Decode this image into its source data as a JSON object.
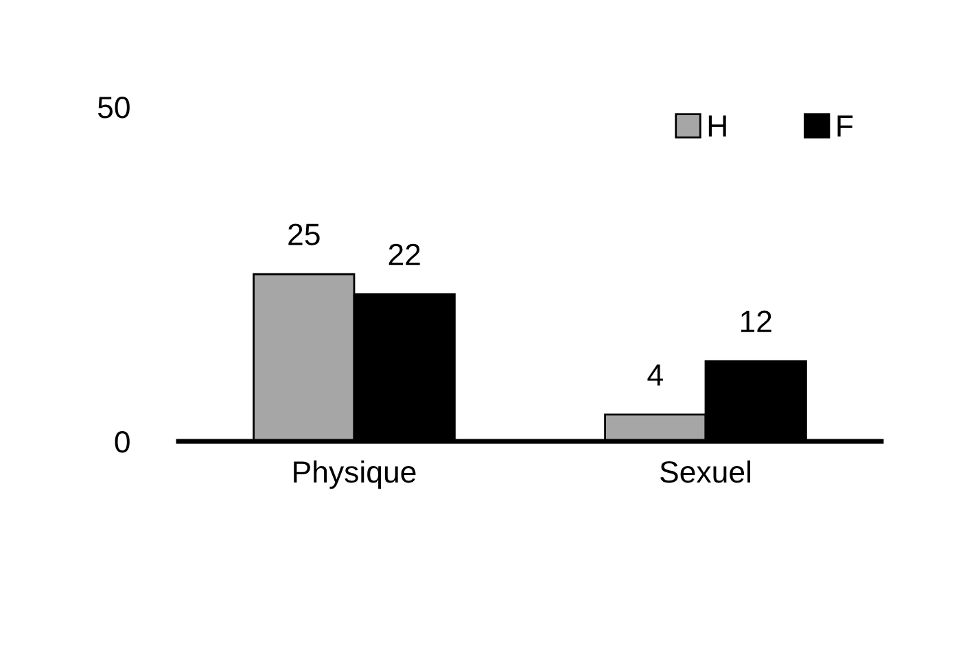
{
  "chart_data": {
    "type": "bar",
    "categories": [
      "Physique",
      "Sexuel"
    ],
    "series": [
      {
        "name": "H",
        "color": "#a6a6a6",
        "values": [
          25,
          4
        ]
      },
      {
        "name": "F",
        "color": "#000000",
        "values": [
          22,
          12
        ]
      }
    ],
    "ylim": [
      0,
      50
    ],
    "yticks": [
      0,
      50
    ],
    "data_labels": true,
    "legend": "top right",
    "grid": false
  }
}
